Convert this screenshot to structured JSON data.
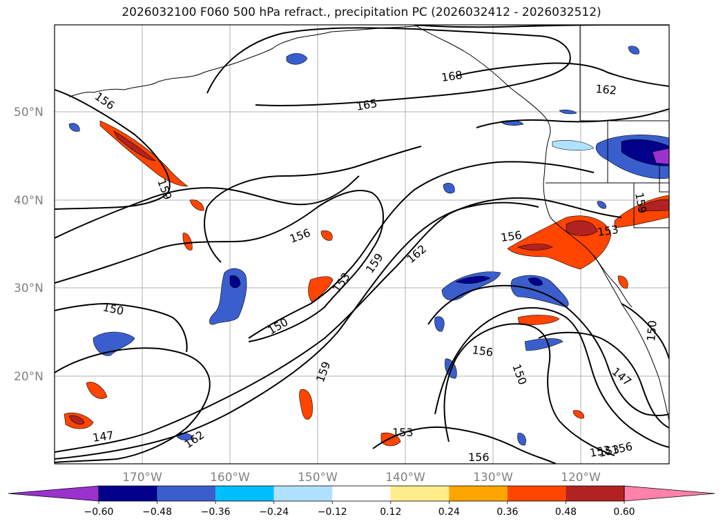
{
  "title": "2026032100 F060 500 hPa refract., precipitation PC (2026032412 - 2026032512)",
  "lat_labels": [
    "50°N",
    "40°N",
    "30°N",
    "20°N"
  ],
  "lon_labels": [
    "170°W",
    "160°W",
    "150°W",
    "140°W",
    "130°W",
    "120°W"
  ],
  "colorbar": {
    "colors": [
      "#9a32cd",
      "#00008b",
      "#3a5fcd",
      "#00bfff",
      "#b0e2ff",
      "#ffffff",
      "#ffec8b",
      "#ffa500",
      "#ff4500",
      "#b22222",
      "#ff82ab"
    ],
    "ticks": [
      "−0.60",
      "−0.48",
      "−0.36",
      "−0.24",
      "−0.12",
      "0.12",
      "0.24",
      "0.36",
      "0.48",
      "0.60"
    ]
  },
  "contour_labels": [
    "168",
    "165",
    "162",
    "156",
    "159",
    "156",
    "162",
    "159",
    "153",
    "156",
    "153",
    "150",
    "150",
    "153",
    "159",
    "156",
    "150",
    "147",
    "150",
    "153",
    "147",
    "162",
    "153",
    "156",
    "156",
    "159",
    "156"
  ],
  "colors": {
    "land_line": "#000000",
    "grid": "#a0a0a0",
    "tick_text": "#808080"
  }
}
